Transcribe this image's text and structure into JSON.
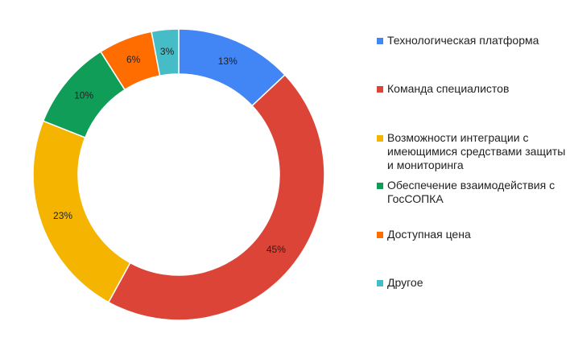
{
  "chart_data": {
    "type": "pie",
    "donut": true,
    "title": "",
    "legend_position": "right",
    "slices": [
      {
        "label": "Технологическая платформа",
        "value": 13,
        "value_label": "13%",
        "color": "#4285f4"
      },
      {
        "label": "Команда специалистов",
        "value": 45,
        "value_label": "45%",
        "color": "#db4437"
      },
      {
        "label": "Возможности интеграции с имеющимися средствами защиты и мониторинга",
        "value": 23,
        "value_label": "23%",
        "color": "#f4b400"
      },
      {
        "label": "Обеспечение взаимодействия с ГосСОПКА",
        "value": 10,
        "value_label": "10%",
        "color": "#0f9d58"
      },
      {
        "label": "Доступная цена",
        "value": 6,
        "value_label": "6%",
        "color": "#ff6d00"
      },
      {
        "label": "Другое",
        "value": 3,
        "value_label": "3%",
        "color": "#46bdc6"
      }
    ]
  }
}
